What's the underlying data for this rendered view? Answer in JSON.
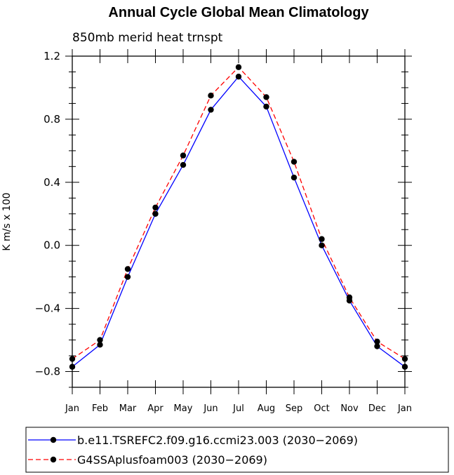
{
  "chart_data": {
    "type": "line",
    "title": "Annual Cycle Global Mean Climatology",
    "subtitle": "850mb merid heat trnspt",
    "xlabel": "",
    "ylabel": "K m/s x 100",
    "categories": [
      "Jan",
      "Feb",
      "Mar",
      "Apr",
      "May",
      "Jun",
      "Jul",
      "Aug",
      "Sep",
      "Oct",
      "Nov",
      "Dec",
      "Jan"
    ],
    "ylim": [
      -0.9,
      1.2
    ],
    "yticks": [
      -0.8,
      -0.4,
      0.0,
      0.4,
      0.8,
      1.2
    ],
    "ytick_labels": [
      "−0.8",
      "−0.4",
      "0.0",
      "0.4",
      "0.8",
      "1.2"
    ],
    "grid": false,
    "legend_position": "bottom",
    "series": [
      {
        "name": "b.e11.TSREFC2.f09.g16.ccmi23.003 (2030−2069)",
        "color": "#0000ff",
        "dash": "solid",
        "values": [
          -0.77,
          -0.63,
          -0.2,
          0.2,
          0.51,
          0.86,
          1.07,
          0.88,
          0.43,
          0.0,
          -0.35,
          -0.64,
          -0.77
        ]
      },
      {
        "name": "G4SSAplusfoam003 (2030−2069)",
        "color": "#ff0000",
        "dash": "dashed",
        "values": [
          -0.72,
          -0.6,
          -0.15,
          0.24,
          0.57,
          0.95,
          1.13,
          0.94,
          0.53,
          0.04,
          -0.33,
          -0.61,
          -0.72
        ]
      }
    ]
  }
}
